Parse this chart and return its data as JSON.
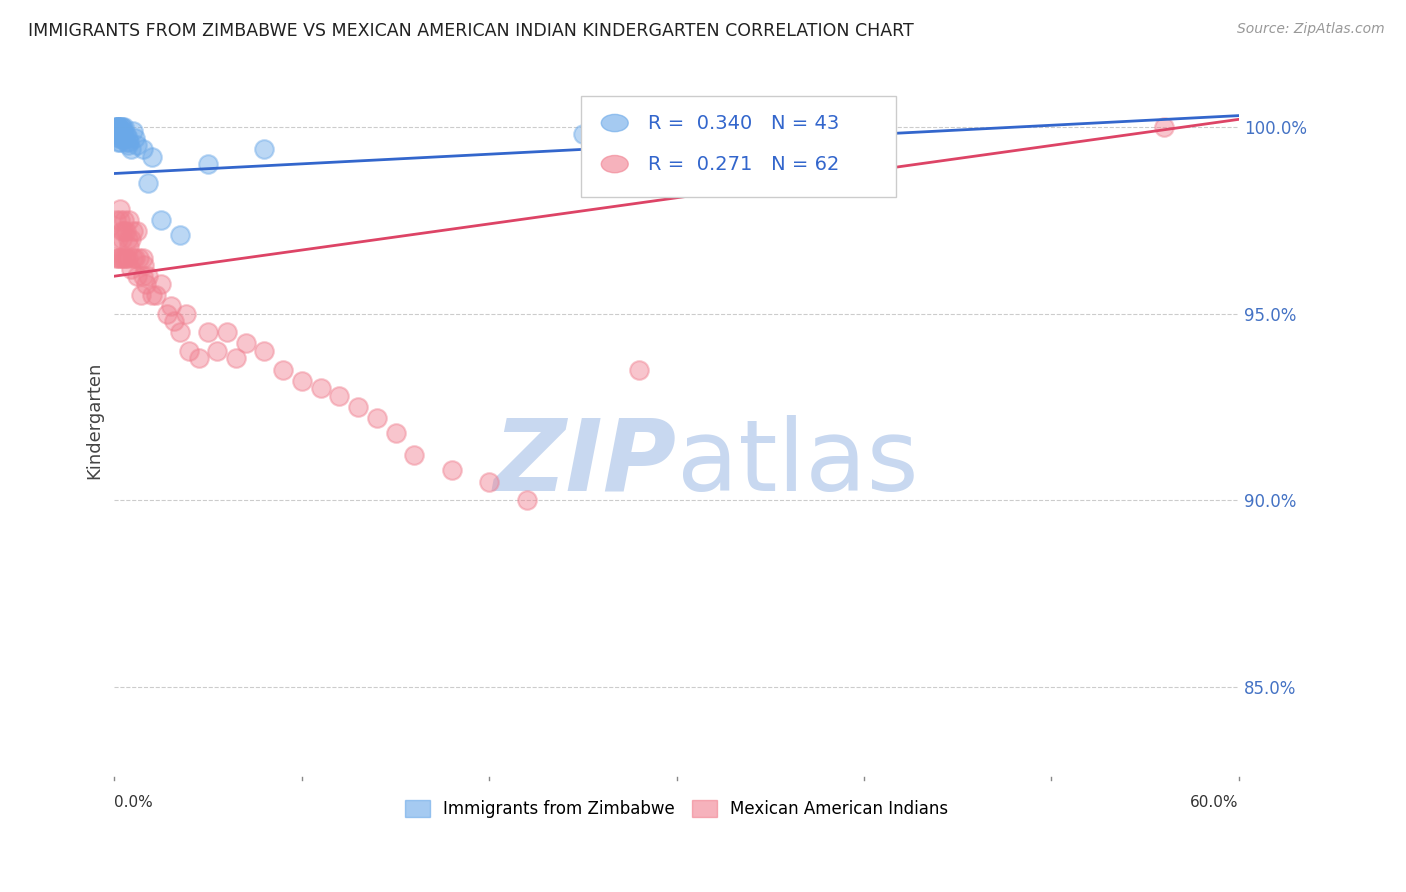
{
  "title": "IMMIGRANTS FROM ZIMBABWE VS MEXICAN AMERICAN INDIAN KINDERGARTEN CORRELATION CHART",
  "source": "Source: ZipAtlas.com",
  "ylabel": "Kindergarten",
  "yticks": [
    0.85,
    0.9,
    0.95,
    1.0
  ],
  "ytick_labels": [
    "85.0%",
    "90.0%",
    "95.0%",
    "100.0%"
  ],
  "xmin": 0.0,
  "xmax": 0.6,
  "ymin": 0.825,
  "ymax": 1.018,
  "blue_R": 0.34,
  "blue_N": 43,
  "pink_R": 0.271,
  "pink_N": 62,
  "blue_color": "#6aa8e8",
  "pink_color": "#f08090",
  "blue_line_color": "#3366cc",
  "pink_line_color": "#dd4466",
  "watermark_zip_color": "#c8d8f0",
  "watermark_atlas_color": "#c8d8f0",
  "legend_color": "#3366cc",
  "legend_label_blue": "Immigrants from Zimbabwe",
  "legend_label_pink": "Mexican American Indians",
  "blue_x": [
    0.001,
    0.001,
    0.001,
    0.001,
    0.002,
    0.002,
    0.002,
    0.002,
    0.002,
    0.002,
    0.002,
    0.002,
    0.003,
    0.003,
    0.003,
    0.003,
    0.003,
    0.004,
    0.004,
    0.004,
    0.004,
    0.004,
    0.005,
    0.005,
    0.005,
    0.006,
    0.006,
    0.007,
    0.007,
    0.008,
    0.009,
    0.01,
    0.011,
    0.012,
    0.015,
    0.018,
    0.02,
    0.025,
    0.035,
    0.05,
    0.08,
    0.25,
    0.35
  ],
  "blue_y": [
    0.998,
    0.999,
    1.0,
    1.0,
    0.996,
    0.997,
    0.998,
    0.999,
    1.0,
    1.0,
    1.0,
    1.0,
    0.996,
    0.997,
    0.998,
    0.999,
    1.0,
    0.997,
    0.998,
    0.999,
    1.0,
    1.0,
    0.997,
    0.998,
    1.0,
    0.996,
    0.998,
    0.995,
    0.997,
    0.996,
    0.994,
    0.999,
    0.997,
    0.995,
    0.994,
    0.985,
    0.992,
    0.975,
    0.971,
    0.99,
    0.994,
    0.998,
    0.999
  ],
  "pink_x": [
    0.001,
    0.001,
    0.002,
    0.002,
    0.003,
    0.003,
    0.003,
    0.004,
    0.004,
    0.004,
    0.005,
    0.005,
    0.005,
    0.006,
    0.006,
    0.007,
    0.007,
    0.008,
    0.008,
    0.009,
    0.009,
    0.01,
    0.01,
    0.011,
    0.012,
    0.012,
    0.013,
    0.014,
    0.015,
    0.015,
    0.016,
    0.017,
    0.018,
    0.02,
    0.022,
    0.025,
    0.028,
    0.03,
    0.032,
    0.035,
    0.038,
    0.04,
    0.045,
    0.05,
    0.055,
    0.06,
    0.065,
    0.07,
    0.08,
    0.09,
    0.1,
    0.11,
    0.12,
    0.13,
    0.14,
    0.15,
    0.16,
    0.18,
    0.2,
    0.22,
    0.28,
    0.56
  ],
  "pink_y": [
    0.975,
    0.965,
    0.97,
    0.965,
    0.978,
    0.975,
    0.965,
    0.972,
    0.97,
    0.965,
    0.975,
    0.972,
    0.965,
    0.972,
    0.965,
    0.97,
    0.965,
    0.975,
    0.968,
    0.97,
    0.962,
    0.972,
    0.965,
    0.965,
    0.972,
    0.96,
    0.965,
    0.955,
    0.965,
    0.96,
    0.963,
    0.958,
    0.96,
    0.955,
    0.955,
    0.958,
    0.95,
    0.952,
    0.948,
    0.945,
    0.95,
    0.94,
    0.938,
    0.945,
    0.94,
    0.945,
    0.938,
    0.942,
    0.94,
    0.935,
    0.932,
    0.93,
    0.928,
    0.925,
    0.922,
    0.918,
    0.912,
    0.908,
    0.905,
    0.9,
    0.935,
    1.0
  ],
  "blue_trend_x": [
    0.0,
    0.6
  ],
  "blue_trend_y": [
    0.9875,
    1.003
  ],
  "pink_trend_x": [
    0.0,
    0.6
  ],
  "pink_trend_y": [
    0.96,
    1.002
  ]
}
